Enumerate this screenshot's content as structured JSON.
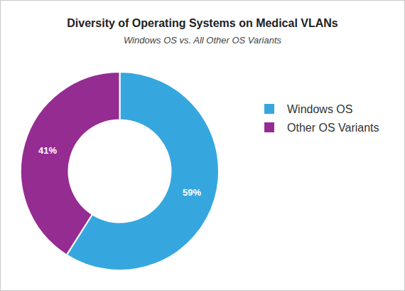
{
  "chart_data": {
    "type": "donut",
    "title": "Diversity of Operating Systems on Medical VLANs",
    "subtitle": "Windows OS vs. All Other OS Variants",
    "categories": [
      "Windows OS",
      "Other OS Variants"
    ],
    "values": [
      59,
      41
    ],
    "value_labels": [
      "59%",
      "41%"
    ],
    "colors": [
      "#36a7de",
      "#952c92"
    ],
    "data_labels": true,
    "legend": "right"
  }
}
